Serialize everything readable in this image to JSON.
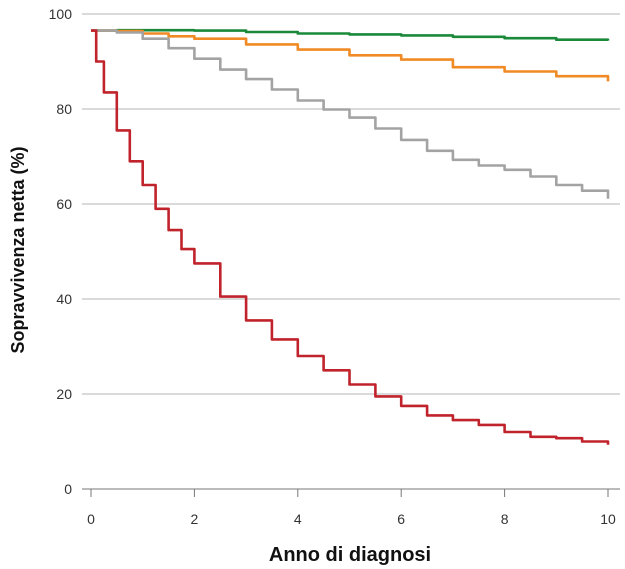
{
  "chart_data": {
    "type": "line",
    "xlabel": "Anno di diagnosi",
    "ylabel": "Sopravvivenza netta (%)",
    "xlim": [
      0,
      10
    ],
    "ylim": [
      0,
      100
    ],
    "x_ticks": [
      0,
      2,
      4,
      6,
      8,
      10
    ],
    "y_ticks": [
      0,
      20,
      40,
      60,
      80,
      100
    ],
    "x_tick_labels": [
      "0",
      "2",
      "4",
      "6",
      "8",
      "10"
    ],
    "y_tick_labels": [
      "0",
      "20",
      "40",
      "60",
      "80",
      "100"
    ],
    "grid": "horizontal",
    "legend": "none",
    "series": [
      {
        "color": "#1a8a3a",
        "x": [
          0,
          0.5,
          1,
          2,
          3,
          4,
          5,
          6,
          7,
          8,
          9,
          10
        ],
        "y": [
          96.5,
          96.6,
          96.6,
          96.5,
          96.2,
          95.9,
          95.7,
          95.5,
          95.2,
          94.9,
          94.6,
          94.4
        ]
      },
      {
        "color": "#f08a24",
        "x": [
          0,
          0.5,
          1,
          1.5,
          2,
          3,
          4,
          5,
          6,
          7,
          8,
          9,
          10
        ],
        "y": [
          96.5,
          96.4,
          95.9,
          95.3,
          94.8,
          93.6,
          92.5,
          91.3,
          90.4,
          88.8,
          87.9,
          86.9,
          85.8
        ]
      },
      {
        "color": "#a3a3a3",
        "x": [
          0,
          0.5,
          1,
          1.5,
          2,
          2.5,
          3,
          3.5,
          4,
          4.5,
          5,
          5.5,
          6,
          6.5,
          7,
          7.5,
          8,
          8.5,
          9,
          9.5,
          10
        ],
        "y": [
          96.5,
          96.1,
          94.8,
          92.8,
          90.6,
          88.3,
          86.3,
          84.1,
          81.8,
          79.9,
          78.2,
          75.9,
          73.5,
          71.2,
          69.3,
          68.1,
          67.2,
          65.8,
          64.0,
          62.8,
          61.1
        ]
      },
      {
        "color": "#c0232b",
        "x": [
          0,
          0.1,
          0.25,
          0.5,
          0.75,
          1,
          1.25,
          1.5,
          1.75,
          2,
          2.5,
          3,
          3.5,
          4,
          4.5,
          5,
          5.5,
          6,
          6.5,
          7,
          7.5,
          8,
          8.5,
          9,
          9.5,
          10
        ],
        "y": [
          96.5,
          90.0,
          83.5,
          75.5,
          69.0,
          64.0,
          59.0,
          54.5,
          50.5,
          47.5,
          40.5,
          35.5,
          31.5,
          28.0,
          25.0,
          22.0,
          19.5,
          17.5,
          15.5,
          14.5,
          13.5,
          12.0,
          11.0,
          10.7,
          10.0,
          9.3
        ]
      }
    ]
  }
}
